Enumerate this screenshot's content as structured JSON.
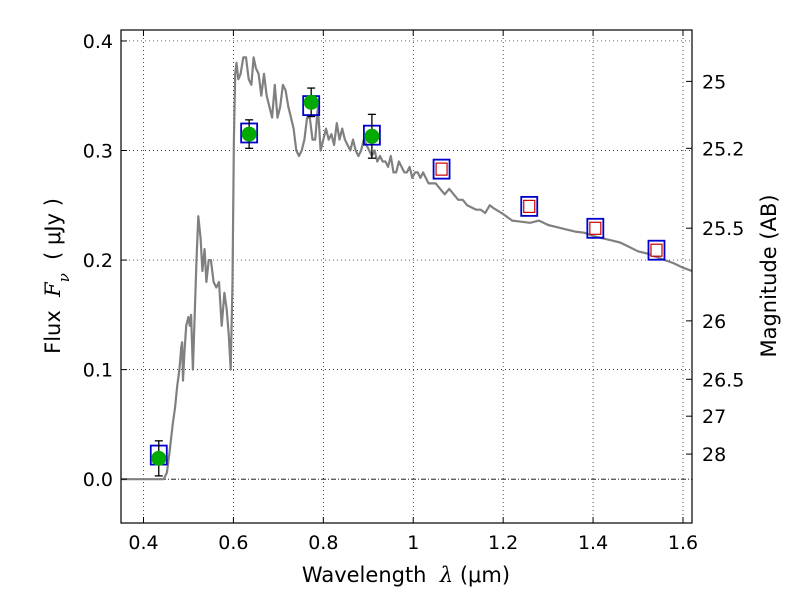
{
  "chart_data": {
    "type": "scatter",
    "title": "",
    "xlabel": "Wavelength  λ (μm)",
    "xlabel_parts": {
      "prefix": "Wavelength  ",
      "symbol": "λ",
      "unit": " (μm)"
    },
    "ylabel": "Flux  Fν  ( μJy )",
    "ylabel_parts": {
      "prefix": "Flux  ",
      "symbol": "F",
      "subscript": "ν",
      "unit": "  ( μJy )"
    },
    "y2label": "Magnitude (AB)",
    "xlim": [
      0.35,
      1.62
    ],
    "ylim": [
      -0.04,
      0.41
    ],
    "grid": true,
    "x_ticks": [
      {
        "value": 0.4,
        "label": "0.4"
      },
      {
        "value": 0.6,
        "label": "0.6"
      },
      {
        "value": 0.8,
        "label": "0.8"
      },
      {
        "value": 1.0,
        "label": "1"
      },
      {
        "value": 1.2,
        "label": "1.2"
      },
      {
        "value": 1.4,
        "label": "1.4"
      },
      {
        "value": 1.6,
        "label": "1.6"
      }
    ],
    "y_ticks": [
      {
        "value": 0.0,
        "label": "0.0"
      },
      {
        "value": 0.1,
        "label": "0.1"
      },
      {
        "value": 0.2,
        "label": "0.2"
      },
      {
        "value": 0.3,
        "label": "0.3"
      },
      {
        "value": 0.4,
        "label": "0.4"
      }
    ],
    "y2_ticks": [
      {
        "label": "25",
        "flux": 0.3631
      },
      {
        "label": "25.2",
        "flux": 0.302
      },
      {
        "label": "25.5",
        "flux": 0.2291
      },
      {
        "label": "26",
        "flux": 0.1445
      },
      {
        "label": "26.5",
        "flux": 0.0912
      },
      {
        "label": "27",
        "flux": 0.0575
      },
      {
        "label": "28",
        "flux": 0.0229
      }
    ],
    "series": [
      {
        "kind": "sed_model",
        "color": "#808080",
        "x": [
          0.35,
          0.43,
          0.445,
          0.452,
          0.458,
          0.465,
          0.47,
          0.475,
          0.48,
          0.484,
          0.486,
          0.488,
          0.491,
          0.495,
          0.5,
          0.503,
          0.506,
          0.51,
          0.514,
          0.518,
          0.522,
          0.527,
          0.531,
          0.536,
          0.54,
          0.545,
          0.55,
          0.556,
          0.562,
          0.568,
          0.574,
          0.58,
          0.585,
          0.59,
          0.594,
          0.598,
          0.601,
          0.604,
          0.607,
          0.611,
          0.616,
          0.622,
          0.628,
          0.634,
          0.64,
          0.645,
          0.65,
          0.656,
          0.662,
          0.668,
          0.674,
          0.68,
          0.686,
          0.692,
          0.698,
          0.704,
          0.71,
          0.716,
          0.722,
          0.728,
          0.734,
          0.74,
          0.746,
          0.752,
          0.758,
          0.764,
          0.77,
          0.776,
          0.782,
          0.788,
          0.794,
          0.8,
          0.806,
          0.812,
          0.818,
          0.824,
          0.83,
          0.836,
          0.842,
          0.848,
          0.854,
          0.86,
          0.866,
          0.872,
          0.878,
          0.884,
          0.89,
          0.896,
          0.902,
          0.908,
          0.914,
          0.92,
          0.926,
          0.932,
          0.938,
          0.944,
          0.95,
          0.956,
          0.962,
          0.968,
          0.974,
          0.98,
          0.986,
          0.992,
          0.998,
          1.004,
          1.01,
          1.016,
          1.022,
          1.028,
          1.034,
          1.04,
          1.05,
          1.06,
          1.07,
          1.08,
          1.09,
          1.1,
          1.11,
          1.12,
          1.13,
          1.14,
          1.15,
          1.16,
          1.17,
          1.18,
          1.2,
          1.22,
          1.24,
          1.26,
          1.28,
          1.3,
          1.32,
          1.34,
          1.36,
          1.38,
          1.4,
          1.42,
          1.44,
          1.46,
          1.48,
          1.5,
          1.52,
          1.54,
          1.56,
          1.58,
          1.6,
          1.62
        ],
        "y": [
          0.0,
          0.0,
          0.0,
          0.006,
          0.025,
          0.05,
          0.065,
          0.085,
          0.1,
          0.12,
          0.125,
          0.09,
          0.115,
          0.14,
          0.148,
          0.14,
          0.15,
          0.1,
          0.15,
          0.2,
          0.24,
          0.22,
          0.19,
          0.21,
          0.18,
          0.2,
          0.2,
          0.18,
          0.175,
          0.18,
          0.14,
          0.17,
          0.155,
          0.13,
          0.1,
          0.18,
          0.31,
          0.37,
          0.38,
          0.365,
          0.37,
          0.385,
          0.385,
          0.365,
          0.36,
          0.385,
          0.375,
          0.37,
          0.35,
          0.37,
          0.35,
          0.34,
          0.33,
          0.36,
          0.33,
          0.34,
          0.36,
          0.355,
          0.34,
          0.33,
          0.32,
          0.3,
          0.295,
          0.3,
          0.31,
          0.33,
          0.33,
          0.31,
          0.31,
          0.34,
          0.3,
          0.31,
          0.32,
          0.31,
          0.315,
          0.305,
          0.325,
          0.31,
          0.32,
          0.31,
          0.305,
          0.3,
          0.31,
          0.3,
          0.295,
          0.3,
          0.31,
          0.305,
          0.3,
          0.295,
          0.3,
          0.29,
          0.295,
          0.29,
          0.29,
          0.285,
          0.295,
          0.28,
          0.28,
          0.29,
          0.285,
          0.28,
          0.28,
          0.285,
          0.275,
          0.28,
          0.28,
          0.275,
          0.28,
          0.275,
          0.27,
          0.27,
          0.27,
          0.265,
          0.26,
          0.265,
          0.26,
          0.255,
          0.255,
          0.25,
          0.248,
          0.246,
          0.246,
          0.243,
          0.25,
          0.247,
          0.242,
          0.236,
          0.235,
          0.234,
          0.236,
          0.232,
          0.23,
          0.228,
          0.226,
          0.225,
          0.222,
          0.22,
          0.218,
          0.216,
          0.212,
          0.208,
          0.206,
          0.203,
          0.2,
          0.197,
          0.193,
          0.19
        ]
      },
      {
        "kind": "model_photometry",
        "marker": "square",
        "color": "#0000cc",
        "x": [
          0.434,
          0.635,
          0.773,
          0.908,
          1.063,
          1.258,
          1.405,
          1.541
        ],
        "y": [
          0.022,
          0.316,
          0.341,
          0.314,
          0.283,
          0.249,
          0.229,
          0.209
        ]
      },
      {
        "kind": "observed",
        "marker": "circle",
        "color": "#00aa00",
        "x": [
          0.434,
          0.635,
          0.773,
          0.908
        ],
        "y": [
          0.019,
          0.315,
          0.344,
          0.313
        ],
        "yerr": [
          0.016,
          0.013,
          0.013,
          0.02
        ]
      },
      {
        "kind": "upper_limits",
        "marker": "square",
        "color": "#cc0000",
        "x": [
          1.063,
          1.258,
          1.405,
          1.541
        ],
        "y": [
          0.283,
          0.249,
          0.229,
          0.209
        ]
      }
    ]
  }
}
